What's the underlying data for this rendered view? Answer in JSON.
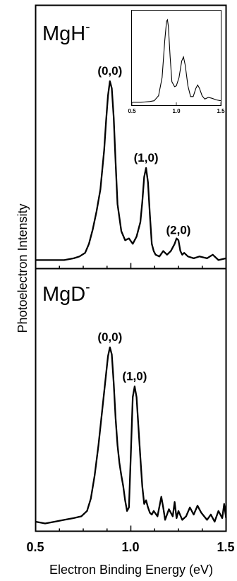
{
  "chart_data": {
    "type": "line",
    "xlabel": "Electron Binding Energy (eV)",
    "ylabel": "Photoelectron Intensity",
    "xlim": [
      0.5,
      1.5
    ],
    "x_ticks": [
      "0.5",
      "1.0",
      "1.5"
    ],
    "panels": [
      {
        "title": "MgH",
        "title_sup": "-",
        "annotations": [
          {
            "text": "(0,0)",
            "x": 0.89
          },
          {
            "text": "(1,0)",
            "x": 1.08
          },
          {
            "text": "(2,0)",
            "x": 1.25
          }
        ],
        "series": [
          {
            "x": [
              0.5,
              0.55,
              0.6,
              0.65,
              0.7,
              0.73,
              0.76,
              0.78,
              0.8,
              0.82,
              0.84,
              0.86,
              0.87,
              0.88,
              0.89,
              0.9,
              0.91,
              0.92,
              0.93,
              0.95,
              0.97,
              0.99,
              1.01,
              1.03,
              1.05,
              1.06,
              1.07,
              1.08,
              1.09,
              1.1,
              1.11,
              1.12,
              1.13,
              1.15,
              1.17,
              1.19,
              1.21,
              1.23,
              1.24,
              1.25,
              1.26,
              1.27,
              1.28,
              1.3,
              1.33,
              1.36,
              1.4,
              1.43,
              1.46,
              1.5
            ],
            "y": [
              0.01,
              0.01,
              0.01,
              0.01,
              0.02,
              0.03,
              0.05,
              0.1,
              0.18,
              0.28,
              0.4,
              0.62,
              0.78,
              0.92,
              1.0,
              0.96,
              0.8,
              0.55,
              0.32,
              0.17,
              0.12,
              0.13,
              0.1,
              0.14,
              0.22,
              0.33,
              0.47,
              0.52,
              0.44,
              0.26,
              0.1,
              0.06,
              0.04,
              0.03,
              0.06,
              0.04,
              0.06,
              0.1,
              0.13,
              0.12,
              0.06,
              0.04,
              0.05,
              0.03,
              0.02,
              0.03,
              0.02,
              0.04,
              0.01,
              0.02
            ]
          }
        ],
        "inset": {
          "xlim": [
            0.5,
            1.5
          ],
          "x_ticks": [
            "0.5",
            "1.0",
            "1.5"
          ],
          "series": [
            {
              "x": [
                0.5,
                0.6,
                0.7,
                0.75,
                0.8,
                0.84,
                0.87,
                0.89,
                0.9,
                0.91,
                0.93,
                0.95,
                0.98,
                1.0,
                1.03,
                1.06,
                1.08,
                1.1,
                1.13,
                1.16,
                1.19,
                1.22,
                1.24,
                1.26,
                1.29,
                1.32,
                1.36,
                1.4,
                1.45,
                1.5
              ],
              "y": [
                0.0,
                0.0,
                0.01,
                0.02,
                0.08,
                0.3,
                0.75,
                0.98,
                1.0,
                0.92,
                0.55,
                0.25,
                0.19,
                0.2,
                0.3,
                0.5,
                0.55,
                0.45,
                0.2,
                0.07,
                0.07,
                0.17,
                0.21,
                0.17,
                0.08,
                0.04,
                0.06,
                0.05,
                0.03,
                0.02
              ]
            }
          ]
        }
      },
      {
        "title": "MgD",
        "title_sup": "-",
        "annotations": [
          {
            "text": "(0,0)",
            "x": 0.89
          },
          {
            "text": "(1,0)",
            "x": 1.02
          }
        ],
        "series": [
          {
            "x": [
              0.5,
              0.55,
              0.6,
              0.65,
              0.7,
              0.74,
              0.77,
              0.79,
              0.81,
              0.83,
              0.85,
              0.87,
              0.88,
              0.89,
              0.9,
              0.91,
              0.92,
              0.93,
              0.94,
              0.95,
              0.96,
              0.97,
              0.98,
              0.99,
              1.0,
              1.01,
              1.02,
              1.03,
              1.04,
              1.05,
              1.06,
              1.07,
              1.08,
              1.09,
              1.1,
              1.11,
              1.12,
              1.14,
              1.16,
              1.17,
              1.18,
              1.2,
              1.22,
              1.23,
              1.24,
              1.25,
              1.27,
              1.29,
              1.31,
              1.33,
              1.35,
              1.37,
              1.4,
              1.42,
              1.44,
              1.46,
              1.48,
              1.49,
              1.5
            ],
            "y": [
              0.02,
              0.01,
              0.02,
              0.03,
              0.04,
              0.05,
              0.08,
              0.15,
              0.28,
              0.45,
              0.65,
              0.85,
              0.95,
              1.0,
              0.96,
              0.8,
              0.6,
              0.45,
              0.35,
              0.28,
              0.22,
              0.14,
              0.08,
              0.1,
              0.4,
              0.72,
              0.78,
              0.72,
              0.55,
              0.38,
              0.22,
              0.12,
              0.14,
              0.1,
              0.07,
              0.06,
              0.08,
              0.05,
              0.16,
              0.1,
              0.03,
              0.09,
              0.05,
              0.13,
              0.04,
              0.08,
              0.03,
              0.05,
              0.1,
              0.06,
              0.11,
              0.07,
              0.03,
              0.06,
              0.02,
              0.08,
              0.04,
              0.12,
              0.04
            ]
          }
        ]
      }
    ]
  }
}
